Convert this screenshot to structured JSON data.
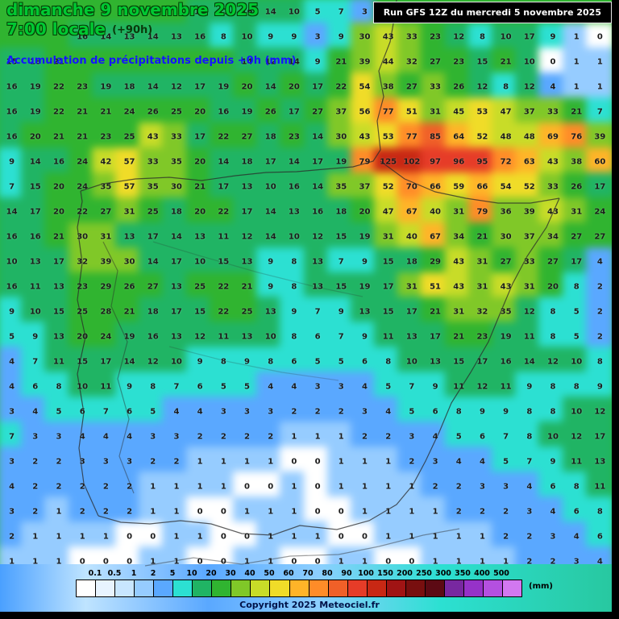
{
  "header": {
    "date_line": "dimanche 9 novembre 2025",
    "time_line": "7:00 locale",
    "offset": "(+90h)",
    "subtitle": "Accumulation de précipitations depuis +0h (mm)",
    "run_box": "Run GFS 12Z du mercredi 5 novembre 2025"
  },
  "footer": {
    "copyright": "Copyright 2025 Meteociel.fr",
    "unit_label": "(mm)"
  },
  "colors": {
    "title_green": "#00C832",
    "title_outline": "#063f06",
    "subtitle_blue": "#1414FF",
    "number_color": "#1c1c1c",
    "runbox_bg": "#000000",
    "runbox_text": "#FFFFFF",
    "copyright_color": "#001248",
    "map_default_green": "#30B430"
  },
  "legend": {
    "values": [
      "0.1",
      "0.5",
      "1",
      "2",
      "5",
      "10",
      "20",
      "30",
      "40",
      "50",
      "60",
      "70",
      "80",
      "90",
      "100",
      "150",
      "200",
      "250",
      "300",
      "350",
      "400",
      "500"
    ],
    "colors": [
      "#FFFFFF",
      "#E8F4FF",
      "#C8E6FF",
      "#96CCFF",
      "#5AA8FF",
      "#2CE0D2",
      "#20B464",
      "#30B430",
      "#80C828",
      "#C8DC28",
      "#F0DC28",
      "#FFB428",
      "#FF8C28",
      "#F06028",
      "#E63C28",
      "#C82814",
      "#A01414",
      "#780F0F",
      "#5C0A14",
      "#7828A0",
      "#9632C8",
      "#B450E0",
      "#D278F0"
    ]
  },
  "map_grid": {
    "type": "heatmap",
    "cols": 26,
    "rows": 23,
    "default_color": "#30B430",
    "values": [
      [
        "",
        "",
        "",
        "",
        "",
        "",
        "",
        "",
        "14",
        "17",
        "16",
        "14",
        "10",
        "5",
        "7",
        "3",
        "",
        "",
        "",
        "",
        "",
        "",
        "",
        "",
        "",
        ""
      ],
      [
        "",
        "",
        "",
        "16",
        "14",
        "13",
        "14",
        "13",
        "16",
        "8",
        "10",
        "9",
        "9",
        "3",
        "9",
        "30",
        "43",
        "33",
        "23",
        "12",
        "8",
        "10",
        "17",
        "9",
        "1",
        "0"
      ],
      [
        "15",
        "18",
        "21",
        "",
        "",
        "",
        "",
        "",
        "",
        "",
        "14",
        "12",
        "14",
        "9",
        "21",
        "39",
        "44",
        "32",
        "27",
        "23",
        "15",
        "21",
        "10",
        "0",
        "1",
        "1"
      ],
      [
        "16",
        "19",
        "22",
        "23",
        "19",
        "18",
        "14",
        "12",
        "17",
        "19",
        "20",
        "14",
        "20",
        "17",
        "22",
        "54",
        "38",
        "27",
        "33",
        "26",
        "12",
        "8",
        "12",
        "4",
        "1",
        "1"
      ],
      [
        "16",
        "19",
        "22",
        "21",
        "21",
        "24",
        "26",
        "25",
        "20",
        "16",
        "19",
        "26",
        "17",
        "27",
        "37",
        "56",
        "77",
        "51",
        "31",
        "45",
        "53",
        "47",
        "37",
        "33",
        "21",
        "7"
      ],
      [
        "16",
        "20",
        "21",
        "21",
        "23",
        "25",
        "43",
        "33",
        "17",
        "22",
        "27",
        "18",
        "23",
        "14",
        "30",
        "43",
        "53",
        "77",
        "85",
        "64",
        "52",
        "48",
        "48",
        "69",
        "76",
        "39"
      ],
      [
        "9",
        "14",
        "16",
        "24",
        "42",
        "57",
        "33",
        "35",
        "20",
        "14",
        "18",
        "17",
        "14",
        "17",
        "19",
        "79",
        "125",
        "102",
        "97",
        "96",
        "95",
        "72",
        "63",
        "43",
        "38",
        "60"
      ],
      [
        "7",
        "15",
        "20",
        "24",
        "35",
        "57",
        "35",
        "30",
        "21",
        "17",
        "13",
        "10",
        "16",
        "14",
        "35",
        "37",
        "52",
        "70",
        "66",
        "59",
        "66",
        "54",
        "52",
        "33",
        "26",
        "17"
      ],
      [
        "14",
        "17",
        "20",
        "22",
        "27",
        "31",
        "25",
        "18",
        "20",
        "22",
        "17",
        "14",
        "13",
        "16",
        "18",
        "20",
        "47",
        "67",
        "40",
        "31",
        "79",
        "36",
        "39",
        "43",
        "31",
        "24"
      ],
      [
        "16",
        "16",
        "21",
        "30",
        "31",
        "13",
        "17",
        "14",
        "13",
        "11",
        "12",
        "14",
        "10",
        "12",
        "15",
        "19",
        "31",
        "40",
        "67",
        "34",
        "21",
        "30",
        "37",
        "34",
        "27",
        "27"
      ],
      [
        "10",
        "13",
        "17",
        "32",
        "39",
        "30",
        "14",
        "17",
        "10",
        "15",
        "13",
        "9",
        "8",
        "13",
        "7",
        "9",
        "15",
        "18",
        "29",
        "43",
        "31",
        "27",
        "33",
        "27",
        "17",
        "4"
      ],
      [
        "16",
        "11",
        "13",
        "23",
        "29",
        "26",
        "27",
        "13",
        "25",
        "22",
        "21",
        "9",
        "8",
        "13",
        "15",
        "19",
        "17",
        "31",
        "51",
        "43",
        "31",
        "43",
        "31",
        "20",
        "8",
        "2"
      ],
      [
        "9",
        "10",
        "15",
        "25",
        "28",
        "21",
        "18",
        "17",
        "15",
        "22",
        "25",
        "13",
        "9",
        "7",
        "9",
        "13",
        "15",
        "17",
        "21",
        "31",
        "32",
        "35",
        "12",
        "8",
        "5",
        "2"
      ],
      [
        "5",
        "9",
        "13",
        "20",
        "24",
        "19",
        "16",
        "13",
        "12",
        "11",
        "13",
        "10",
        "8",
        "6",
        "7",
        "9",
        "11",
        "13",
        "17",
        "21",
        "23",
        "19",
        "11",
        "8",
        "5",
        "2"
      ],
      [
        "4",
        "7",
        "11",
        "15",
        "17",
        "14",
        "12",
        "10",
        "9",
        "8",
        "9",
        "8",
        "6",
        "5",
        "5",
        "6",
        "8",
        "10",
        "13",
        "15",
        "17",
        "16",
        "14",
        "12",
        "10",
        "8"
      ],
      [
        "4",
        "6",
        "8",
        "10",
        "11",
        "9",
        "8",
        "7",
        "6",
        "5",
        "5",
        "4",
        "4",
        "3",
        "3",
        "4",
        "5",
        "7",
        "9",
        "11",
        "12",
        "11",
        "9",
        "8",
        "8",
        "9"
      ],
      [
        "3",
        "4",
        "5",
        "6",
        "7",
        "6",
        "5",
        "4",
        "4",
        "3",
        "3",
        "3",
        "2",
        "2",
        "2",
        "3",
        "4",
        "5",
        "6",
        "8",
        "9",
        "9",
        "8",
        "8",
        "10",
        "12"
      ],
      [
        "7",
        "3",
        "3",
        "4",
        "4",
        "4",
        "3",
        "3",
        "2",
        "2",
        "2",
        "2",
        "1",
        "1",
        "1",
        "2",
        "2",
        "3",
        "4",
        "5",
        "6",
        "7",
        "8",
        "10",
        "12",
        "17"
      ],
      [
        "3",
        "2",
        "2",
        "3",
        "3",
        "3",
        "2",
        "2",
        "1",
        "1",
        "1",
        "1",
        "0",
        "0",
        "1",
        "1",
        "1",
        "2",
        "3",
        "4",
        "4",
        "5",
        "7",
        "9",
        "11",
        "13"
      ],
      [
        "4",
        "2",
        "2",
        "2",
        "2",
        "2",
        "1",
        "1",
        "1",
        "1",
        "0",
        "0",
        "1",
        "0",
        "1",
        "1",
        "1",
        "1",
        "2",
        "2",
        "3",
        "3",
        "4",
        "6",
        "8",
        "11"
      ],
      [
        "3",
        "2",
        "1",
        "2",
        "2",
        "2",
        "1",
        "1",
        "0",
        "0",
        "1",
        "1",
        "1",
        "0",
        "0",
        "1",
        "1",
        "1",
        "1",
        "2",
        "2",
        "2",
        "3",
        "4",
        "6",
        "8"
      ],
      [
        "2",
        "1",
        "1",
        "1",
        "1",
        "0",
        "0",
        "1",
        "1",
        "0",
        "0",
        "1",
        "1",
        "1",
        "0",
        "0",
        "1",
        "1",
        "1",
        "1",
        "1",
        "2",
        "2",
        "3",
        "4",
        "6"
      ],
      [
        "1",
        "1",
        "1",
        "0",
        "0",
        "0",
        "1",
        "1",
        "0",
        "0",
        "1",
        "1",
        "0",
        "0",
        "1",
        "1",
        "0",
        "0",
        "1",
        "1",
        "1",
        "1",
        "2",
        "2",
        "3",
        "4"
      ]
    ]
  }
}
